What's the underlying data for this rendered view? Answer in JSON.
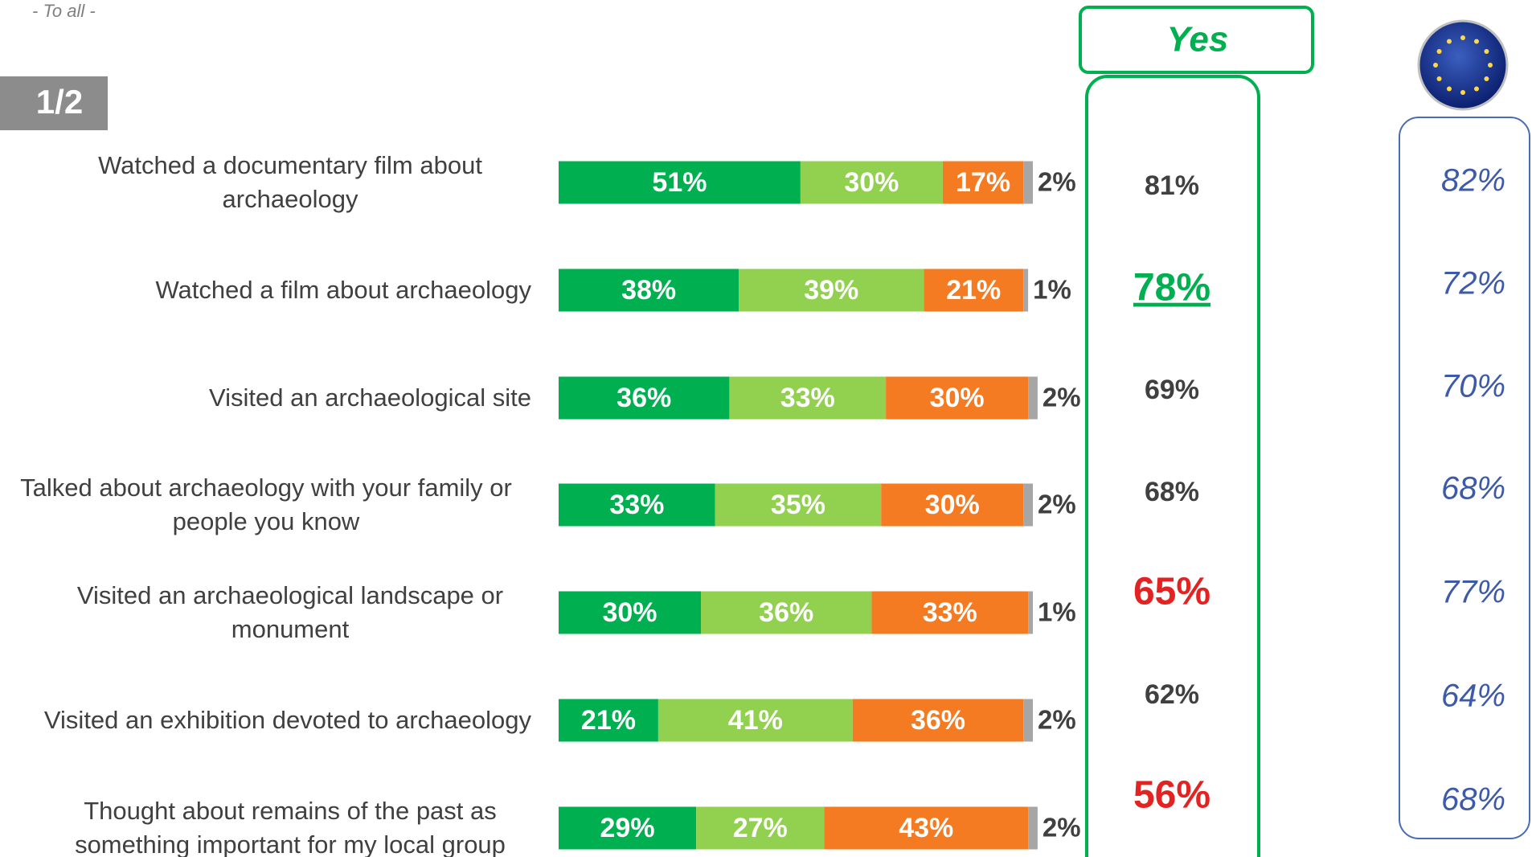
{
  "note": "- To all -",
  "page": "1/2",
  "chart_data": {
    "type": "stacked-bar-horizontal",
    "categories": [
      "Watched a documentary film about archaeology",
      "Watched a film about archaeology",
      "Visited an archaeological site",
      "Talked about archaeology with your family or people you know",
      "Visited an archaeological landscape or monument",
      "Visited an exhibition devoted to archaeology",
      "Thought about remains of the past as something important for my local group"
    ],
    "xlim": [
      0,
      100
    ],
    "series": [
      {
        "color": "#00b050",
        "values": [
          51,
          38,
          36,
          33,
          30,
          21,
          29
        ],
        "value_labels": [
          "51%",
          "38%",
          "36%",
          "33%",
          "30%",
          "21%",
          "29%"
        ]
      },
      {
        "color": "#92d050",
        "values": [
          30,
          39,
          33,
          35,
          36,
          41,
          27
        ],
        "value_labels": [
          "30%",
          "39%",
          "33%",
          "35%",
          "36%",
          "41%",
          "27%"
        ]
      },
      {
        "color": "#f47b22",
        "values": [
          17,
          21,
          30,
          30,
          33,
          36,
          43
        ],
        "value_labels": [
          "17%",
          "21%",
          "30%",
          "30%",
          "33%",
          "36%",
          "43%"
        ]
      },
      {
        "color": "#a6a6a6",
        "values": [
          2,
          1,
          2,
          2,
          1,
          2,
          2
        ],
        "value_labels": [
          "2%",
          "1%",
          "2%",
          "2%",
          "1%",
          "2%",
          "2%"
        ]
      }
    ],
    "yes": {
      "title": "Yes",
      "values": [
        81,
        78,
        69,
        68,
        65,
        62,
        56
      ],
      "value_labels": [
        "81%",
        "78%",
        "69%",
        "68%",
        "65%",
        "62%",
        "56%"
      ],
      "colors": [
        "#404040",
        "#00b050",
        "#404040",
        "#404040",
        "#e32222",
        "#404040",
        "#e32222"
      ]
    },
    "eu": {
      "color": "#3d5aa8",
      "values": [
        82,
        72,
        70,
        68,
        77,
        64,
        68
      ],
      "value_labels": [
        "82%",
        "72%",
        "70%",
        "68%",
        "77%",
        "64%",
        "68%"
      ]
    }
  }
}
